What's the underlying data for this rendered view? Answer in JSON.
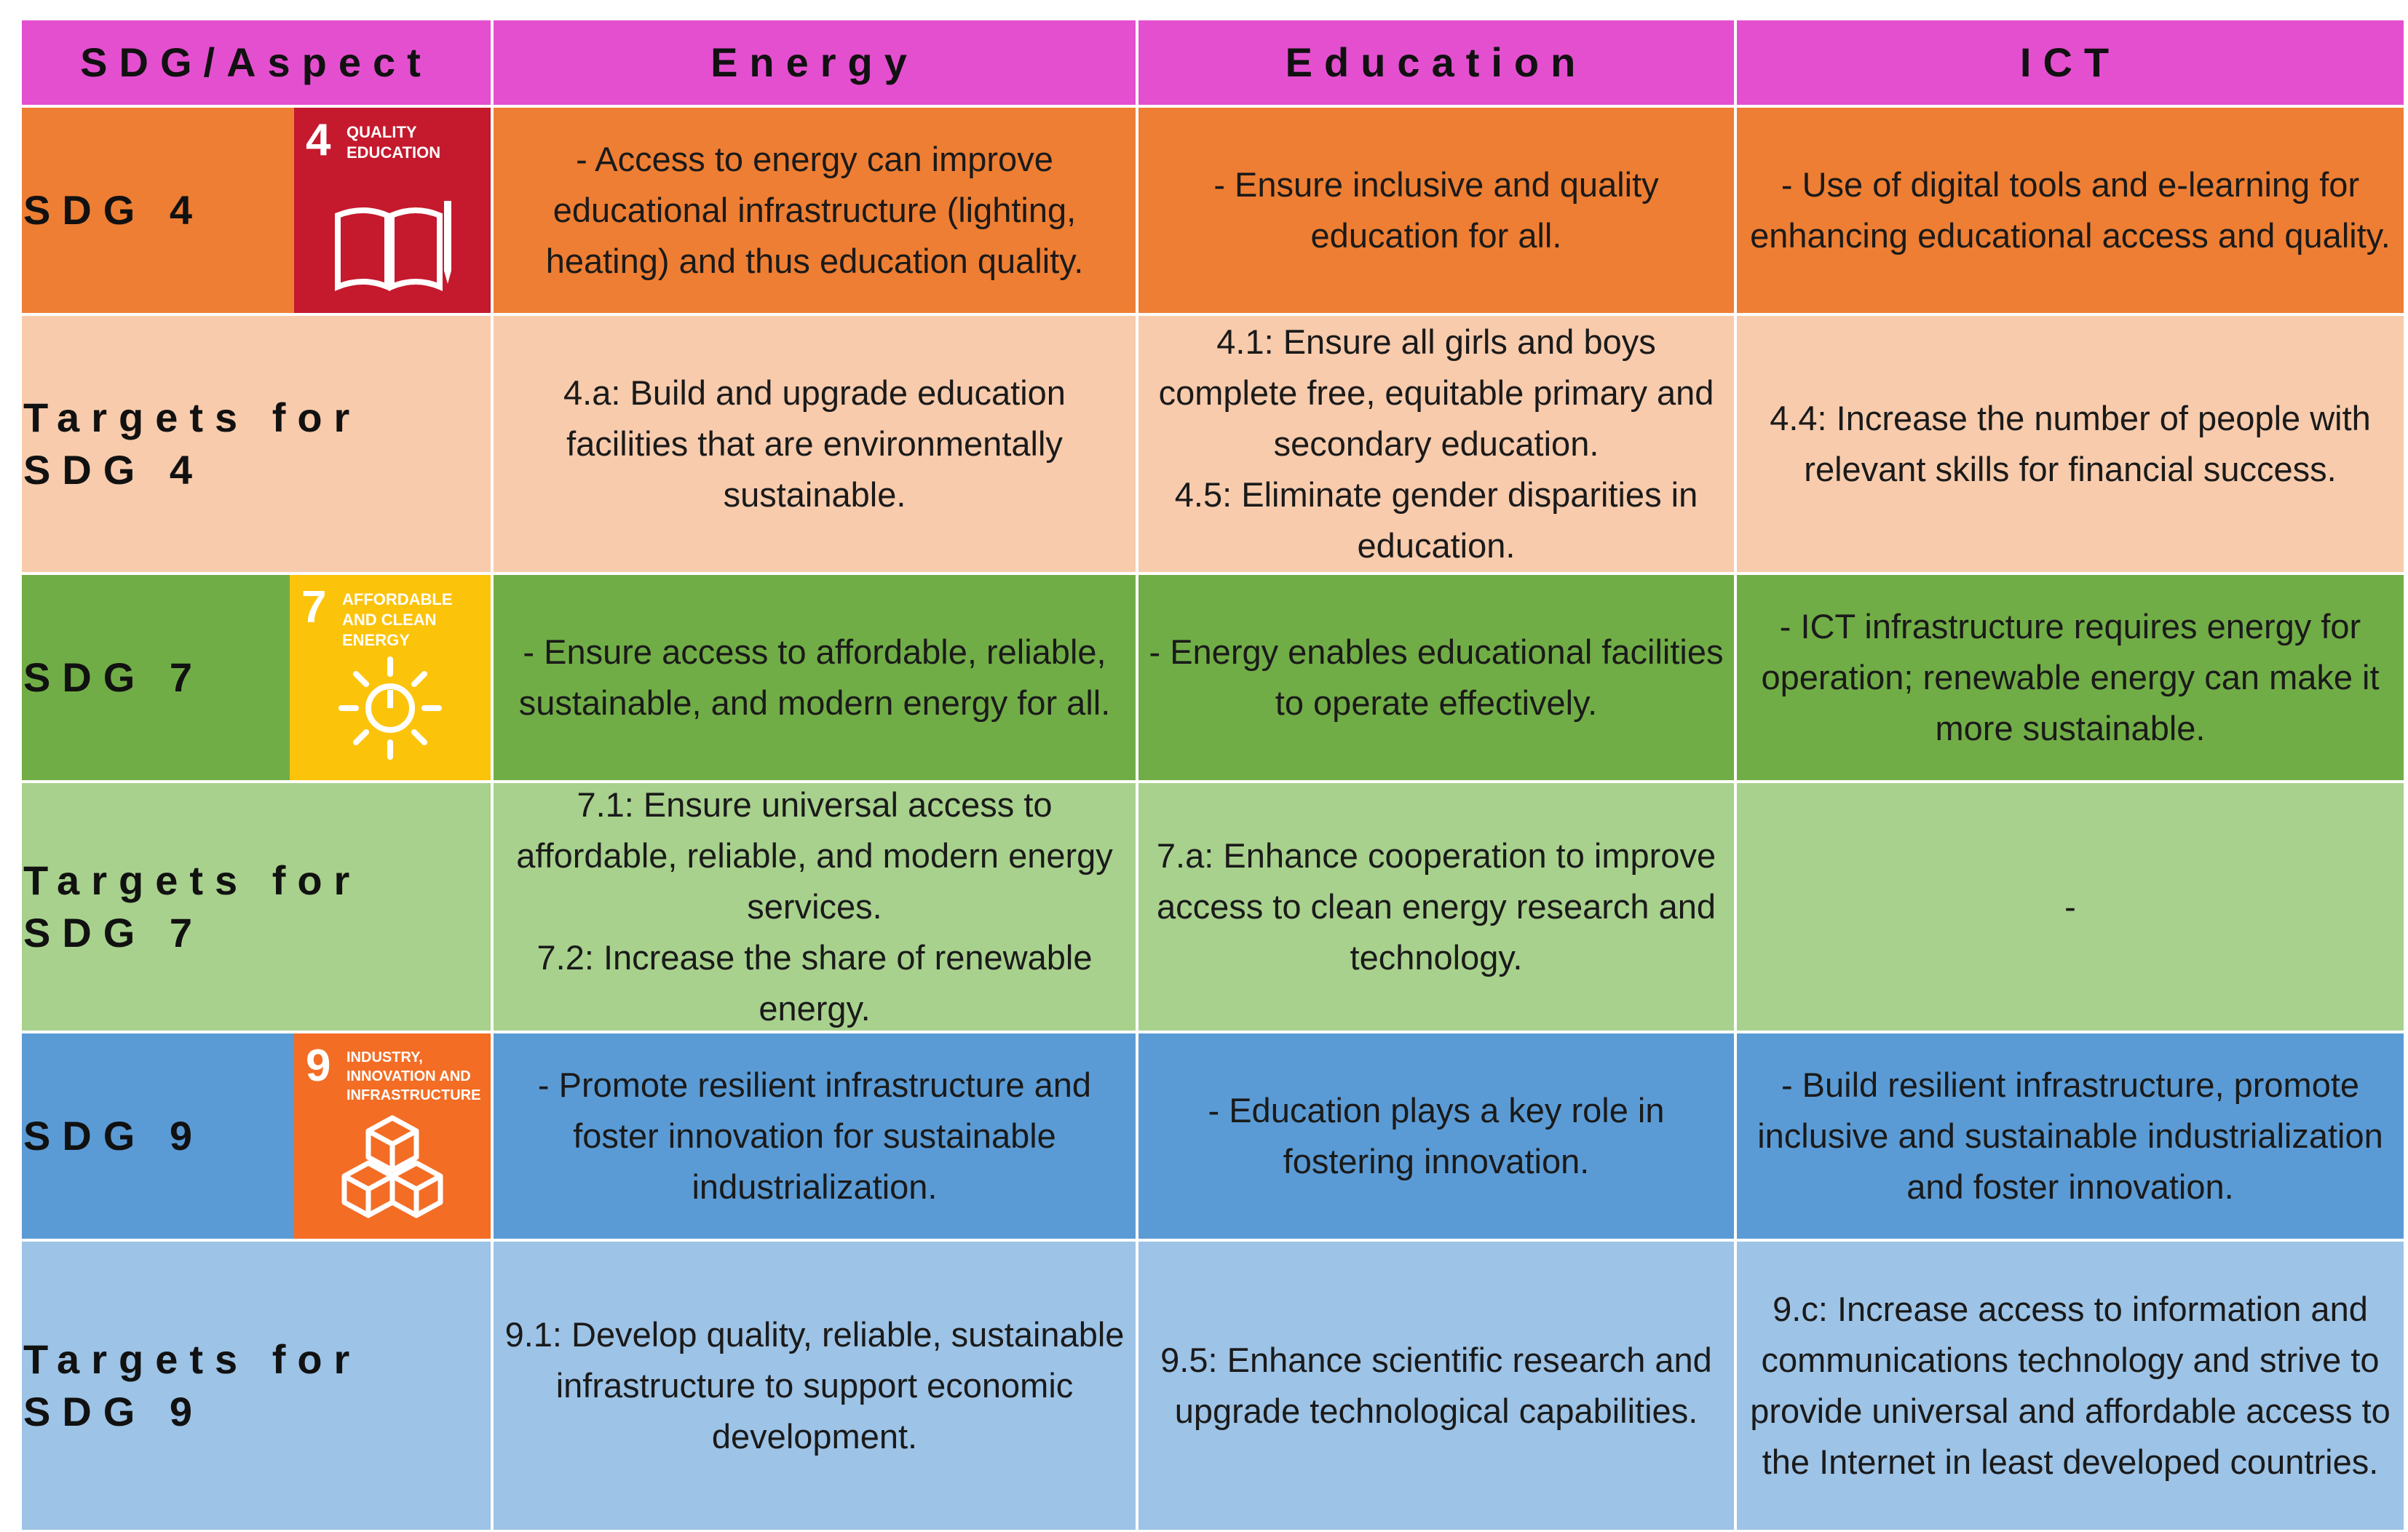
{
  "colors": {
    "header": "#e44fd0",
    "sdg4": "#ee7e33",
    "sdg4_targets": "#f7cbac",
    "sdg7": "#71ad46",
    "sdg7_targets": "#a8d18d",
    "sdg9": "#5b9bd5",
    "sdg9_targets": "#9dc3e6",
    "badge4": "#c5192d",
    "badge7": "#fcc30b",
    "badge9": "#f36d25"
  },
  "header": {
    "aspect": "SDG/Aspect",
    "energy": "Energy",
    "education": "Education",
    "ict": "ICT"
  },
  "rows": {
    "sdg4": {
      "label": "SDG 4",
      "badge": {
        "number": "4",
        "title": "QUALITY EDUCATION",
        "icon": "open-book-pencil-icon"
      },
      "energy": "- Access to energy can improve educational infrastructure (lighting, heating) and thus education quality.",
      "education": "- Ensure inclusive and quality education for all.",
      "ict": "- Use of digital tools and e-learning for enhancing educational access and quality."
    },
    "sdg4_targets": {
      "label": "Targets for SDG 4",
      "energy": "4.a: Build and upgrade education facilities that are environmentally sustainable.",
      "education": "4.1: Ensure all girls and boys complete free, equitable primary and secondary education.\n4.5: Eliminate gender disparities in education.",
      "ict": "4.4: Increase the number of people with relevant skills for financial success."
    },
    "sdg7": {
      "label": "SDG 7",
      "badge": {
        "number": "7",
        "title": "AFFORDABLE AND CLEAN ENERGY",
        "icon": "sun-power-icon"
      },
      "energy": "- Ensure access to affordable, reliable, sustainable, and modern energy for all.",
      "education": "- Energy enables educational facilities to operate effectively.",
      "ict": "-    ICT infrastructure requires energy for operation; renewable energy can make it more sustainable."
    },
    "sdg7_targets": {
      "label": "Targets for SDG 7",
      "energy": "7.1: Ensure universal access to affordable, reliable, and modern energy services.\n7.2: Increase the share of renewable energy.",
      "education": "7.a: Enhance cooperation to improve access to clean energy research and technology.",
      "ict": "-"
    },
    "sdg9": {
      "label": "SDG 9",
      "badge": {
        "number": "9",
        "title": "INDUSTRY, INNOVATION AND INFRASTRUCTURE",
        "icon": "cubes-icon"
      },
      "energy": "- Promote resilient infrastructure and foster innovation for sustainable industrialization.",
      "education": "- Education plays a key role in fostering innovation.",
      "ict": "- Build resilient infrastructure, promote inclusive and sustainable industrialization and foster innovation."
    },
    "sdg9_targets": {
      "label": "Targets for SDG 9",
      "energy": "9.1: Develop quality, reliable, sustainable infrastructure to support economic development.",
      "education": "9.5: Enhance scientific research and upgrade technological capabilities.",
      "ict": "9.c: Increase access to information and communications technology and strive to provide universal and affordable access to the Internet in least developed countries."
    }
  }
}
